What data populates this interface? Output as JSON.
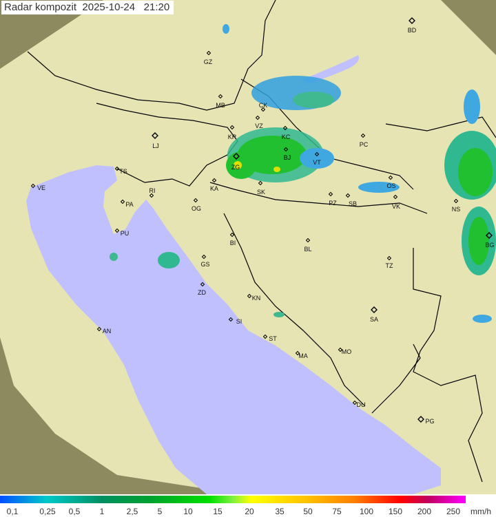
{
  "header": {
    "title": "Radar kompozit",
    "date": "2025-10-24",
    "time": "21:20"
  },
  "legend": {
    "labels": [
      "0,1",
      "0,25",
      "0,5",
      "1",
      "2,5",
      "5",
      "10",
      "15",
      "20",
      "35",
      "50",
      "75",
      "100",
      "150",
      "200",
      "250"
    ],
    "unit": "mm/h"
  },
  "colors": {
    "sea": "#c0c0ff",
    "land": "#e8e6b0",
    "outside": "#8e8a60",
    "border": "#000000",
    "radar_light": "#2080ff",
    "radar_mid": "#40b8a0",
    "radar_strong": "#20c020"
  },
  "cities": [
    {
      "code": "GZ"
    },
    {
      "code": "BD"
    },
    {
      "code": "MB"
    },
    {
      "code": "CK"
    },
    {
      "code": "VZ"
    },
    {
      "code": "KR"
    },
    {
      "code": "KC"
    },
    {
      "code": "LJ"
    },
    {
      "code": "ZG"
    },
    {
      "code": "BJ"
    },
    {
      "code": "VT"
    },
    {
      "code": "PC"
    },
    {
      "code": "TS"
    },
    {
      "code": "VE"
    },
    {
      "code": "RI"
    },
    {
      "code": "KA"
    },
    {
      "code": "SK"
    },
    {
      "code": "OS"
    },
    {
      "code": "PZ"
    },
    {
      "code": "SB"
    },
    {
      "code": "VK"
    },
    {
      "code": "NS"
    },
    {
      "code": "PA"
    },
    {
      "code": "OG"
    },
    {
      "code": "PU"
    },
    {
      "code": "BI"
    },
    {
      "code": "BL"
    },
    {
      "code": "BG"
    },
    {
      "code": "GS"
    },
    {
      "code": "TZ"
    },
    {
      "code": "ZD"
    },
    {
      "code": "KN"
    },
    {
      "code": "SA"
    },
    {
      "code": "SI"
    },
    {
      "code": "AN"
    },
    {
      "code": "ST"
    },
    {
      "code": "MA"
    },
    {
      "code": "MO"
    },
    {
      "code": "DU"
    },
    {
      "code": "PG"
    }
  ]
}
